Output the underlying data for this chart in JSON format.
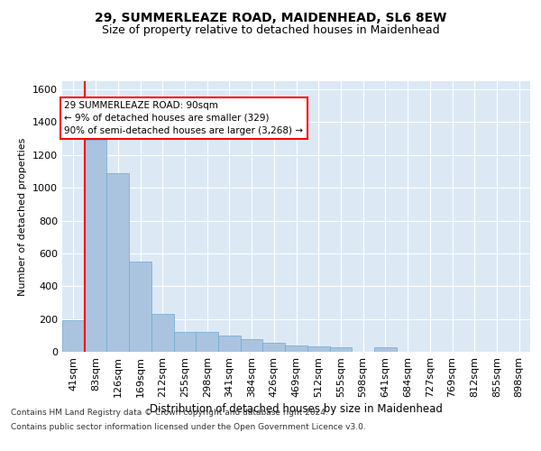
{
  "title1": "29, SUMMERLEAZE ROAD, MAIDENHEAD, SL6 8EW",
  "title2": "Size of property relative to detached houses in Maidenhead",
  "xlabel": "Distribution of detached houses by size in Maidenhead",
  "ylabel": "Number of detached properties",
  "categories": [
    "41sqm",
    "83sqm",
    "126sqm",
    "169sqm",
    "212sqm",
    "255sqm",
    "298sqm",
    "341sqm",
    "384sqm",
    "426sqm",
    "469sqm",
    "512sqm",
    "555sqm",
    "598sqm",
    "641sqm",
    "684sqm",
    "727sqm",
    "769sqm",
    "812sqm",
    "855sqm",
    "898sqm"
  ],
  "values": [
    190,
    1290,
    1090,
    550,
    230,
    120,
    120,
    100,
    75,
    55,
    40,
    35,
    30,
    0,
    25,
    0,
    0,
    0,
    0,
    0,
    0
  ],
  "bar_color": "#aac4e0",
  "bar_edge_color": "#6fa8d0",
  "bg_color": "#dce9f5",
  "grid_color": "#ffffff",
  "red_line_index": 1,
  "ylim_max": 1650,
  "yticks": [
    0,
    200,
    400,
    600,
    800,
    1000,
    1200,
    1400,
    1600
  ],
  "annotation_title": "29 SUMMERLEAZE ROAD: 90sqm",
  "annotation_line1": "← 9% of detached houses are smaller (329)",
  "annotation_line2": "90% of semi-detached houses are larger (3,268) →",
  "footnote1": "Contains HM Land Registry data © Crown copyright and database right 2024.",
  "footnote2": "Contains public sector information licensed under the Open Government Licence v3.0."
}
